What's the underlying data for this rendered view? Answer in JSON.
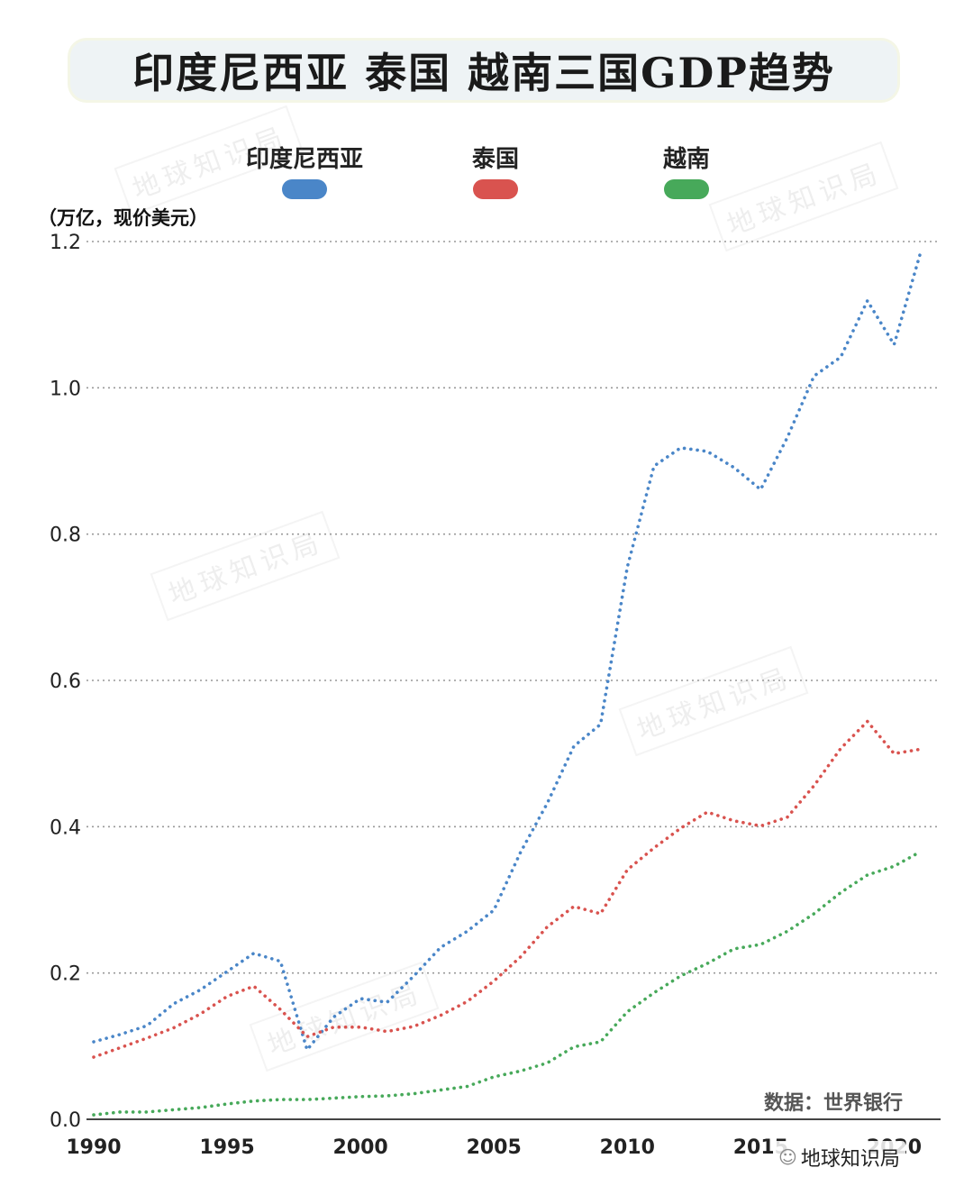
{
  "title": "印度尼西亚 泰国 越南三国GDP趋势",
  "unit_label": "（万亿，现价美元）",
  "source_label": "数据：世界银行",
  "watermark_text": "地球知识局",
  "footer_icon": "wechat-icon",
  "footer_mark": "地球知识局",
  "chart_data": {
    "type": "line",
    "title": "印度尼西亚 泰国 越南三国GDP趋势",
    "ylabel": "（万亿，现价美元）",
    "xlabel": "",
    "xlim": [
      1990,
      2021
    ],
    "ylim": [
      0,
      1.2
    ],
    "x_ticks": [
      1990,
      1995,
      2000,
      2005,
      2010,
      2015,
      2020
    ],
    "y_ticks": [
      "0.0",
      "0.2",
      "0.4",
      "0.6",
      "0.8",
      "1.0",
      "1.2"
    ],
    "grid": "horizontal dotted",
    "legend_position": "top",
    "line_style": "dotted",
    "x": [
      1990,
      1991,
      1992,
      1993,
      1994,
      1995,
      1996,
      1997,
      1998,
      1999,
      2000,
      2001,
      2002,
      2003,
      2004,
      2005,
      2006,
      2007,
      2008,
      2009,
      2010,
      2011,
      2012,
      2013,
      2014,
      2015,
      2016,
      2017,
      2018,
      2019,
      2020,
      2021
    ],
    "series": [
      {
        "name": "印度尼西亚",
        "color": "#4a86c8",
        "values": [
          0.106,
          0.116,
          0.128,
          0.158,
          0.177,
          0.202,
          0.227,
          0.216,
          0.095,
          0.14,
          0.165,
          0.16,
          0.196,
          0.235,
          0.257,
          0.286,
          0.365,
          0.432,
          0.51,
          0.54,
          0.755,
          0.893,
          0.918,
          0.913,
          0.891,
          0.861,
          0.932,
          1.016,
          1.042,
          1.119,
          1.059,
          1.186
        ]
      },
      {
        "name": "泰国",
        "color": "#d9534f",
        "values": [
          0.085,
          0.098,
          0.111,
          0.125,
          0.144,
          0.168,
          0.182,
          0.15,
          0.113,
          0.126,
          0.126,
          0.12,
          0.127,
          0.142,
          0.161,
          0.189,
          0.222,
          0.263,
          0.291,
          0.281,
          0.341,
          0.371,
          0.398,
          0.42,
          0.408,
          0.401,
          0.413,
          0.456,
          0.507,
          0.544,
          0.5,
          0.506
        ]
      },
      {
        "name": "越南",
        "color": "#47a95a",
        "values": [
          0.006,
          0.01,
          0.01,
          0.013,
          0.016,
          0.021,
          0.025,
          0.027,
          0.027,
          0.029,
          0.031,
          0.032,
          0.035,
          0.04,
          0.045,
          0.058,
          0.066,
          0.077,
          0.099,
          0.106,
          0.147,
          0.173,
          0.196,
          0.213,
          0.233,
          0.239,
          0.257,
          0.281,
          0.31,
          0.334,
          0.346,
          0.366
        ]
      }
    ]
  }
}
